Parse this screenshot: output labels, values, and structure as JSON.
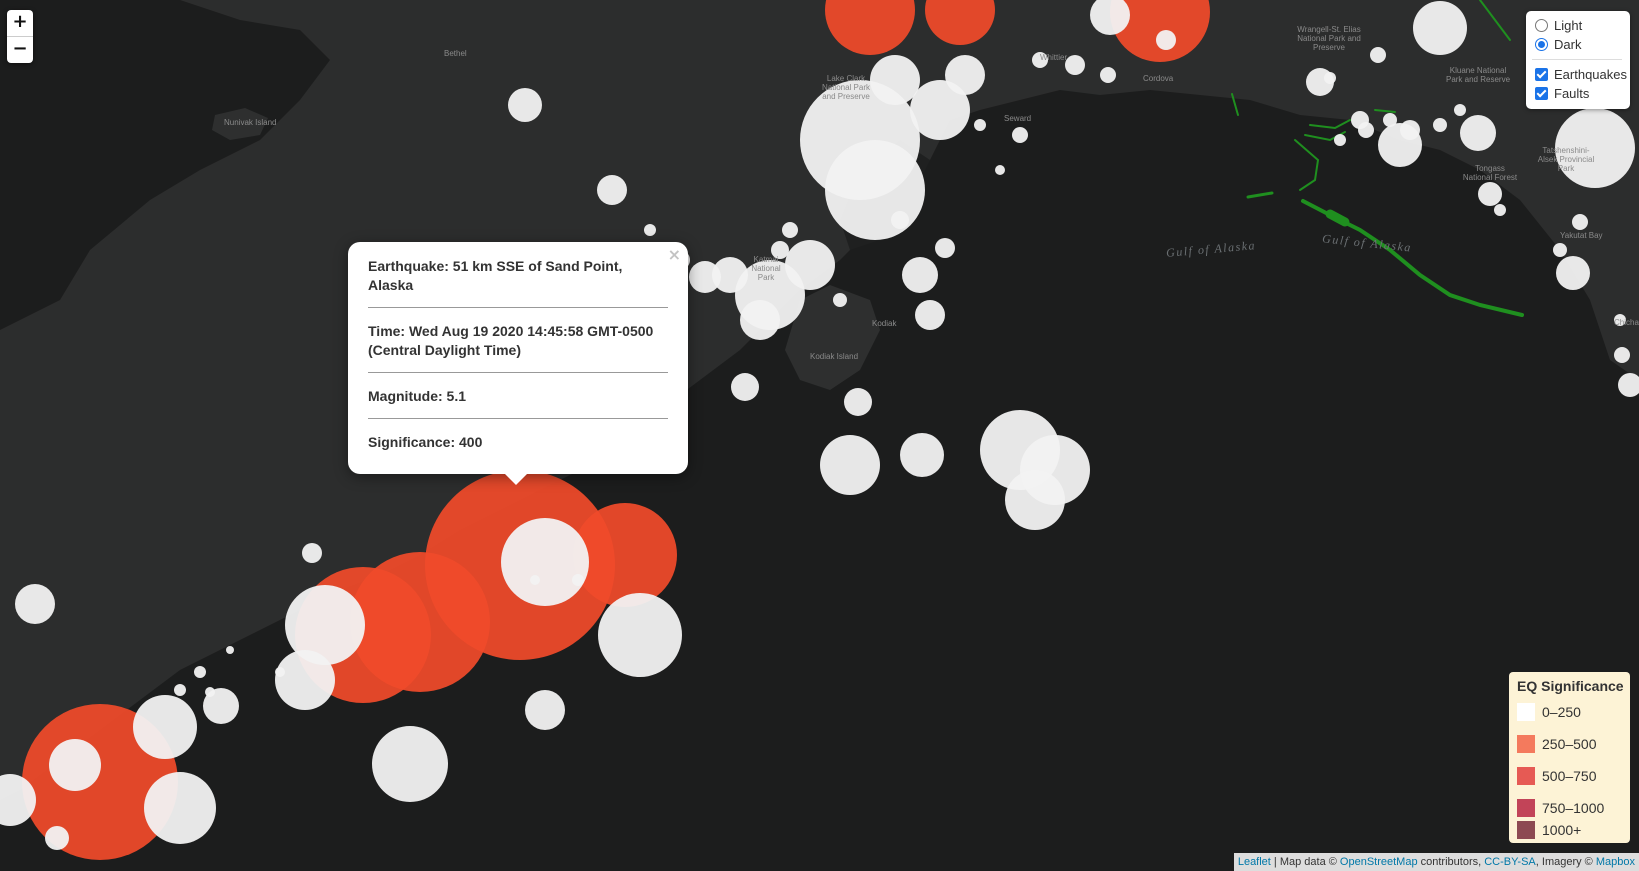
{
  "map": {
    "place_labels": [
      "Bethel",
      "Nunivak Island",
      "Lake Clark National Park and Preserve",
      "Seward",
      "Whittier",
      "Cordova",
      "Wrangell-St. Elias National Park and Preserve",
      "Kluane National Park and Reserve",
      "Tongass National Forest",
      "Tatshenshini-Alsek Provincial Park",
      "Yakutat Bay",
      "Kodiak Island",
      "Kodiak",
      "Katmai National Park",
      "Chichagof"
    ],
    "water_labels": [
      "Gulf of Alaska",
      "Gulf of Alaska"
    ]
  },
  "zoom": {
    "in_label": "+",
    "out_label": "−"
  },
  "layer_control": {
    "base_layers": [
      {
        "label": "Light",
        "selected": false
      },
      {
        "label": "Dark",
        "selected": true
      }
    ],
    "overlays": [
      {
        "label": "Earthquakes",
        "checked": true
      },
      {
        "label": "Faults",
        "checked": true
      }
    ]
  },
  "popup": {
    "close_label": "×",
    "earthquake": "Earthquake: 51 km SSE of Sand Point, Alaska",
    "time": "Time: Wed Aug 19 2020 14:45:58 GMT-0500 (Central Daylight Time)",
    "magnitude": "Magnitude: 5.1",
    "significance": "Significance: 400"
  },
  "legend": {
    "title": "EQ Significance",
    "items": [
      {
        "label": "0–250",
        "color": "#ffffff"
      },
      {
        "label": "250–500",
        "color": "#f47a5d"
      },
      {
        "label": "500–750",
        "color": "#e65a54"
      },
      {
        "label": "750–1000",
        "color": "#c24458"
      },
      {
        "label": "1000+",
        "color": "#8d4a52"
      }
    ]
  },
  "attribution": {
    "leaflet": "Leaflet",
    "sep": " | Map data © ",
    "osm": "OpenStreetMap",
    "contrib": " contributors, ",
    "license": "CC-BY-SA",
    "imagery": ", Imagery © ",
    "mapbox": "Mapbox"
  },
  "colors": {
    "quake_low": "#f2f2f2",
    "quake_mid": "#f04a2a",
    "fault": "#1f8f1f",
    "land": "#2b2c2c",
    "water": "#1c1d1d"
  }
}
